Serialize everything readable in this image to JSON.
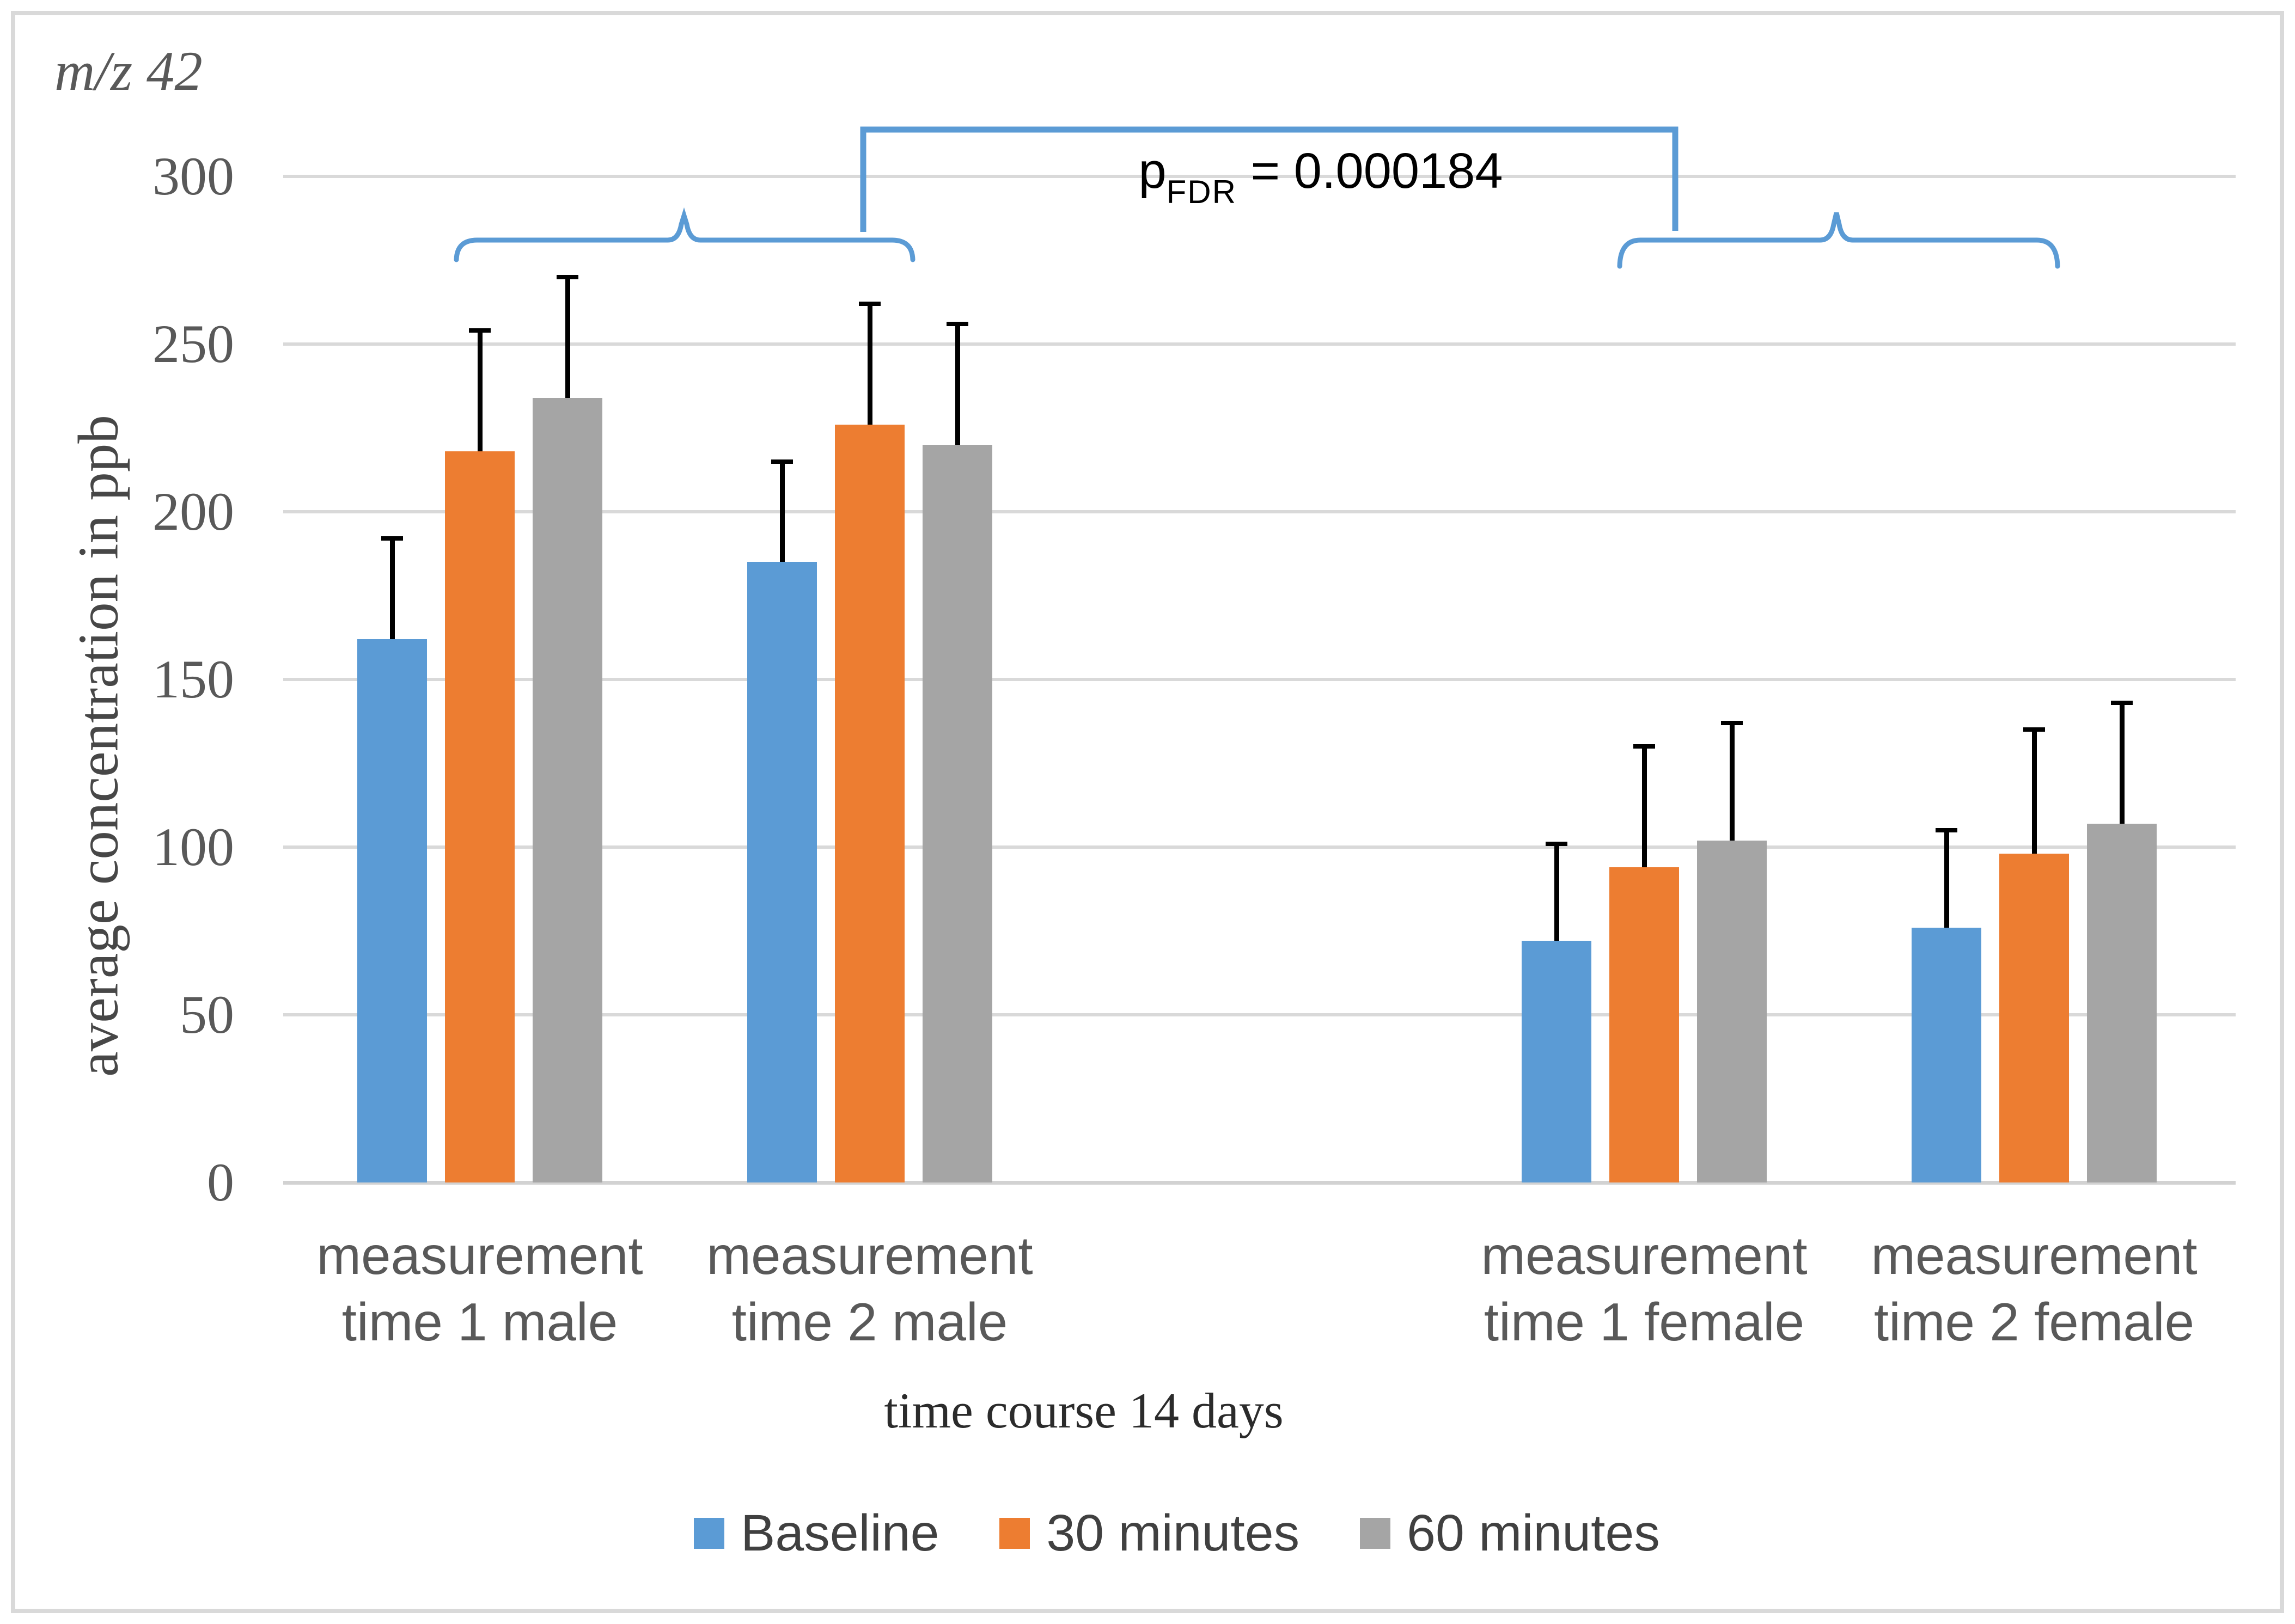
{
  "title": {
    "prefix": "m/z",
    "number": "42"
  },
  "annotation": {
    "p_main": "p",
    "p_sub": "FDR",
    "p_rest": " = 0.000184"
  },
  "y_axis": {
    "title": "average concentration in ppb"
  },
  "x_axis": {
    "title": "time course 14 days",
    "categories_lines": [
      [
        "measurement",
        "time 1 male"
      ],
      [
        "measurement",
        "time 2 male"
      ],
      [
        "measurement",
        "time 1 female"
      ],
      [
        "measurement",
        "time 2 female"
      ]
    ]
  },
  "colors": {
    "baseline_blue": "#5B9BD5",
    "thirty_minutes_orange": "#ED7D31",
    "sixty_minutes_gray": "#A5A5A5",
    "accent_blue": "#5B9BD5",
    "gridline": "#D9D9D9",
    "frame_border": "#D9D9D9",
    "error_bar": "#000000"
  },
  "chart_data": {
    "type": "bar",
    "title": "m/z 42",
    "categories": [
      "measurement time 1 male",
      "measurement time 2 male",
      "measurement time 1 female",
      "measurement time 2 female"
    ],
    "series": [
      {
        "name": "Baseline",
        "color": "#5B9BD5",
        "values": [
          162,
          185,
          72,
          76
        ],
        "upper_errors": [
          30,
          30,
          29,
          29
        ]
      },
      {
        "name": "30 minutes",
        "color": "#ED7D31",
        "values": [
          218,
          226,
          94,
          98
        ],
        "upper_errors": [
          36,
          36,
          36,
          37
        ]
      },
      {
        "name": "60 minutes",
        "color": "#A5A5A5",
        "values": [
          234,
          220,
          102,
          107
        ],
        "upper_errors": [
          36,
          36,
          35,
          36
        ]
      }
    ],
    "xlabel": "time course 14 days",
    "ylabel": "average concentration in ppb",
    "ylim": [
      0,
      300
    ],
    "yticks": [
      0,
      50,
      100,
      150,
      200,
      250,
      300
    ],
    "grid": true,
    "legend_position": "bottom",
    "error_bars": "upper only, with end caps",
    "annotations": {
      "significance_label": "pFDR = 0.000184",
      "significance_comparison": "male groups (1-2) vs female groups (3-4)",
      "brackets": "blue curly brace over the two male groups, blue curly brace over the two female groups, blue square bracket connecting them with the p-value label"
    }
  }
}
